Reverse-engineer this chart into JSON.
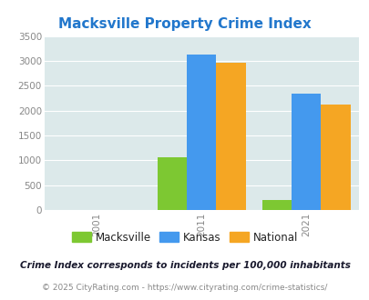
{
  "title": "Macksville Property Crime Index",
  "title_color": "#2277CC",
  "years": [
    "2001",
    "2011",
    "2021"
  ],
  "macksville": [
    0,
    1060,
    200
  ],
  "kansas": [
    0,
    3120,
    2340
  ],
  "national": [
    0,
    2960,
    2120
  ],
  "macksville_color": "#7DC832",
  "kansas_color": "#4499EE",
  "national_color": "#F5A623",
  "ylim": [
    0,
    3500
  ],
  "yticks": [
    0,
    500,
    1000,
    1500,
    2000,
    2500,
    3000,
    3500
  ],
  "plot_bg": "#DCE9EA",
  "legend_labels": [
    "Macksville",
    "Kansas",
    "National"
  ],
  "footnote1": "Crime Index corresponds to incidents per 100,000 inhabitants",
  "footnote2": "© 2025 CityRating.com - https://www.cityrating.com/crime-statistics/",
  "bar_width": 0.28,
  "tick_color": "#888888",
  "footnote1_color": "#1a1a2e",
  "footnote2_color": "#888888"
}
